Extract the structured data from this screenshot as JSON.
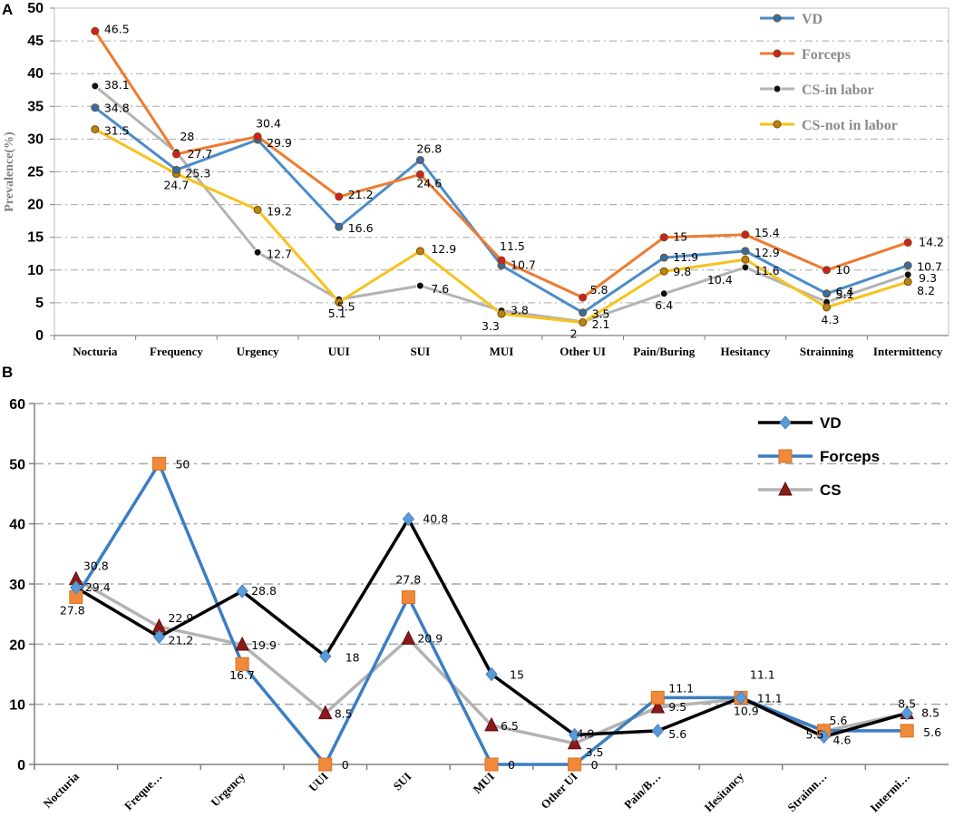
{
  "chart_data": [
    {
      "panel": "A",
      "type": "line",
      "ylabel": "Prevalence(%)",
      "xlabel": "",
      "ylim": [
        0,
        50
      ],
      "yticks": [
        "0",
        "5",
        "10",
        "15",
        "20",
        "25",
        "30",
        "35",
        "40",
        "45",
        "50"
      ],
      "grid": "horizontal dash-dot",
      "legend_position": "top-right",
      "categories": [
        "Nocturia",
        "Frequency",
        "Urgency",
        "UUI",
        "SUI",
        "MUI",
        "Other UI",
        "Pain/Buring",
        "Hesitancy",
        "Strainning",
        "Intermittency"
      ],
      "series": [
        {
          "name": "VD",
          "color": "#4a8cc8",
          "values": [
            34.8,
            25.3,
            29.9,
            16.6,
            26.8,
            10.7,
            3.5,
            11.9,
            12.9,
            6.4,
            10.7
          ]
        },
        {
          "name": "Forceps",
          "color": "#ee7b30",
          "values": [
            46.5,
            27.7,
            30.4,
            21.2,
            24.6,
            11.5,
            5.8,
            15,
            15.4,
            10,
            14.2
          ]
        },
        {
          "name": "CS-in labor",
          "color": "#b3b3b3",
          "values": [
            38.1,
            28,
            12.7,
            5.5,
            7.6,
            3.8,
            2.1,
            6.4,
            10.4,
            5.1,
            9.3
          ]
        },
        {
          "name": "CS-not in labor",
          "color": "#f7c21b",
          "values": [
            31.5,
            24.7,
            19.2,
            5.1,
            12.9,
            3.3,
            2,
            9.8,
            11.6,
            4.3,
            8.2
          ]
        }
      ],
      "data_labels": [
        {
          "text": "34.8",
          "cat": 0,
          "value": 34.8
        },
        {
          "text": "25.3",
          "cat": 1,
          "value": 25.3
        },
        {
          "text": "29.9",
          "cat": 2,
          "value": 29.9
        },
        {
          "text": "16.6",
          "cat": 3,
          "value": 16.6
        },
        {
          "text": "26.8",
          "cat": 4,
          "value": 26.8
        },
        {
          "text": "10.7",
          "cat": 5,
          "value": 10.7
        },
        {
          "text": "3.5",
          "cat": 6,
          "value": 3.5
        },
        {
          "text": "11.9",
          "cat": 7,
          "value": 11.9
        },
        {
          "text": "12.9",
          "cat": 8,
          "value": 12.9
        },
        {
          "text": "6.4",
          "cat": 9,
          "value": 6.4
        },
        {
          "text": "10.7",
          "cat": 10,
          "value": 10.7
        },
        {
          "text": "46.5",
          "cat": 0,
          "value": 46.5
        },
        {
          "text": "27.7",
          "cat": 1,
          "value": 27.7
        },
        {
          "text": "30.4",
          "cat": 2,
          "value": 30.4
        },
        {
          "text": "21.2",
          "cat": 3,
          "value": 21.2
        },
        {
          "text": "24.6",
          "cat": 4,
          "value": 24.6
        },
        {
          "text": "11.5",
          "cat": 5,
          "value": 11.5
        },
        {
          "text": "5.8",
          "cat": 6,
          "value": 5.8
        },
        {
          "text": "15",
          "cat": 7,
          "value": 15
        },
        {
          "text": "15.4",
          "cat": 8,
          "value": 15.4
        },
        {
          "text": "10",
          "cat": 9,
          "value": 10
        },
        {
          "text": "14.2",
          "cat": 10,
          "value": 14.2
        },
        {
          "text": "38.1",
          "cat": 0,
          "value": 38.1
        },
        {
          "text": "28",
          "cat": 1,
          "value": 28
        },
        {
          "text": "12.7",
          "cat": 2,
          "value": 12.7
        },
        {
          "text": "5.5",
          "cat": 3,
          "value": 5.5
        },
        {
          "text": "7.6",
          "cat": 4,
          "value": 7.6
        },
        {
          "text": "3.8",
          "cat": 5,
          "value": 3.8
        },
        {
          "text": "2.1",
          "cat": 6,
          "value": 2.1
        },
        {
          "text": "6.4",
          "cat": 7,
          "value": 6.4
        },
        {
          "text": "10.4",
          "cat": 8,
          "value": 10.4
        },
        {
          "text": "5.1",
          "cat": 9,
          "value": 5.1
        },
        {
          "text": "9.3",
          "cat": 10,
          "value": 9.3
        },
        {
          "text": "31.5",
          "cat": 0,
          "value": 31.5
        },
        {
          "text": "24.7",
          "cat": 1,
          "value": 24.7
        },
        {
          "text": "19.2",
          "cat": 2,
          "value": 19.2
        },
        {
          "text": "5.1",
          "cat": 3,
          "value": 5.1
        },
        {
          "text": "12.9",
          "cat": 4,
          "value": 12.9
        },
        {
          "text": "3.3",
          "cat": 5,
          "value": 3.3
        },
        {
          "text": "2",
          "cat": 6,
          "value": 2
        },
        {
          "text": "9.8",
          "cat": 7,
          "value": 9.8
        },
        {
          "text": "11.6",
          "cat": 8,
          "value": 11.6
        },
        {
          "text": "4.3",
          "cat": 9,
          "value": 4.3
        },
        {
          "text": "8.2",
          "cat": 10,
          "value": 8.2
        }
      ]
    },
    {
      "panel": "B",
      "type": "line",
      "ylabel": "",
      "xlabel": "",
      "ylim": [
        0,
        60
      ],
      "yticks": [
        "0",
        "10",
        "20",
        "30",
        "40",
        "50",
        "60"
      ],
      "grid": "horizontal dash-dot",
      "legend_position": "top-right",
      "categories": [
        "Nocturia",
        "Freque…",
        "Urgency",
        "UUI",
        "SUI",
        "MUI",
        "Other UI",
        "Pain/B…",
        "Hesitancy",
        "Strainn…",
        "Intermi…"
      ],
      "series": [
        {
          "name": "VD",
          "color": "#000000",
          "marker": "diamond",
          "marker_color": "#5b9bd5",
          "values": [
            29.4,
            21.2,
            28.8,
            18,
            40.8,
            15,
            4.9,
            5.6,
            11.1,
            4.6,
            8.5
          ]
        },
        {
          "name": "Forceps",
          "color": "#3b7ec2",
          "marker": "square",
          "marker_color": "#f08a3a",
          "values": [
            27.8,
            50,
            16.7,
            0,
            27.8,
            0,
            0,
            11.1,
            11.1,
            5.6,
            5.6
          ]
        },
        {
          "name": "CS",
          "color": "#b3b3b3",
          "marker": "triangle",
          "marker_color": "#8b1a1a",
          "values": [
            30.8,
            22.9,
            19.9,
            8.5,
            20.9,
            6.5,
            3.5,
            9.5,
            10.9,
            5.5,
            8.5
          ]
        }
      ],
      "data_labels": [
        {
          "text": "29.4",
          "cat": 0,
          "value": 29.4
        },
        {
          "text": "21.2",
          "cat": 1,
          "value": 21.2
        },
        {
          "text": "28.8",
          "cat": 2,
          "value": 28.8
        },
        {
          "text": "18",
          "cat": 3,
          "value": 18
        },
        {
          "text": "40.8",
          "cat": 4,
          "value": 40.8
        },
        {
          "text": "15",
          "cat": 5,
          "value": 15
        },
        {
          "text": "4.9",
          "cat": 6,
          "value": 4.9
        },
        {
          "text": "5.6",
          "cat": 7,
          "value": 5.6
        },
        {
          "text": "11.1",
          "cat": 8,
          "value": 11.1
        },
        {
          "text": "4.6",
          "cat": 9,
          "value": 4.6
        },
        {
          "text": "8.5",
          "cat": 10,
          "value": 8.5
        },
        {
          "text": "27.8",
          "cat": 0,
          "value": 27.8
        },
        {
          "text": "50",
          "cat": 1,
          "value": 50
        },
        {
          "text": "16.7",
          "cat": 2,
          "value": 16.7
        },
        {
          "text": "0",
          "cat": 3,
          "value": 0
        },
        {
          "text": "27.8",
          "cat": 4,
          "value": 27.8
        },
        {
          "text": "0",
          "cat": 5,
          "value": 0
        },
        {
          "text": "0",
          "cat": 6,
          "value": 0
        },
        {
          "text": "11.1",
          "cat": 7,
          "value": 11.1
        },
        {
          "text": "11.1",
          "cat": 8,
          "value": 11.1
        },
        {
          "text": "5.6",
          "cat": 9,
          "value": 5.6
        },
        {
          "text": "5.6",
          "cat": 10,
          "value": 5.6
        },
        {
          "text": "30.8",
          "cat": 0,
          "value": 30.8
        },
        {
          "text": "22.9",
          "cat": 1,
          "value": 22.9
        },
        {
          "text": "19.9",
          "cat": 2,
          "value": 19.9
        },
        {
          "text": "8.5",
          "cat": 3,
          "value": 8.5
        },
        {
          "text": "20.9",
          "cat": 4,
          "value": 20.9
        },
        {
          "text": "6.5",
          "cat": 5,
          "value": 6.5
        },
        {
          "text": "3.5",
          "cat": 6,
          "value": 3.5
        },
        {
          "text": "9.5",
          "cat": 7,
          "value": 9.5
        },
        {
          "text": "10.9",
          "cat": 8,
          "value": 10.9
        },
        {
          "text": "5.5",
          "cat": 9,
          "value": 5.5
        },
        {
          "text": "8.5",
          "cat": 10,
          "value": 8.5
        }
      ]
    }
  ]
}
